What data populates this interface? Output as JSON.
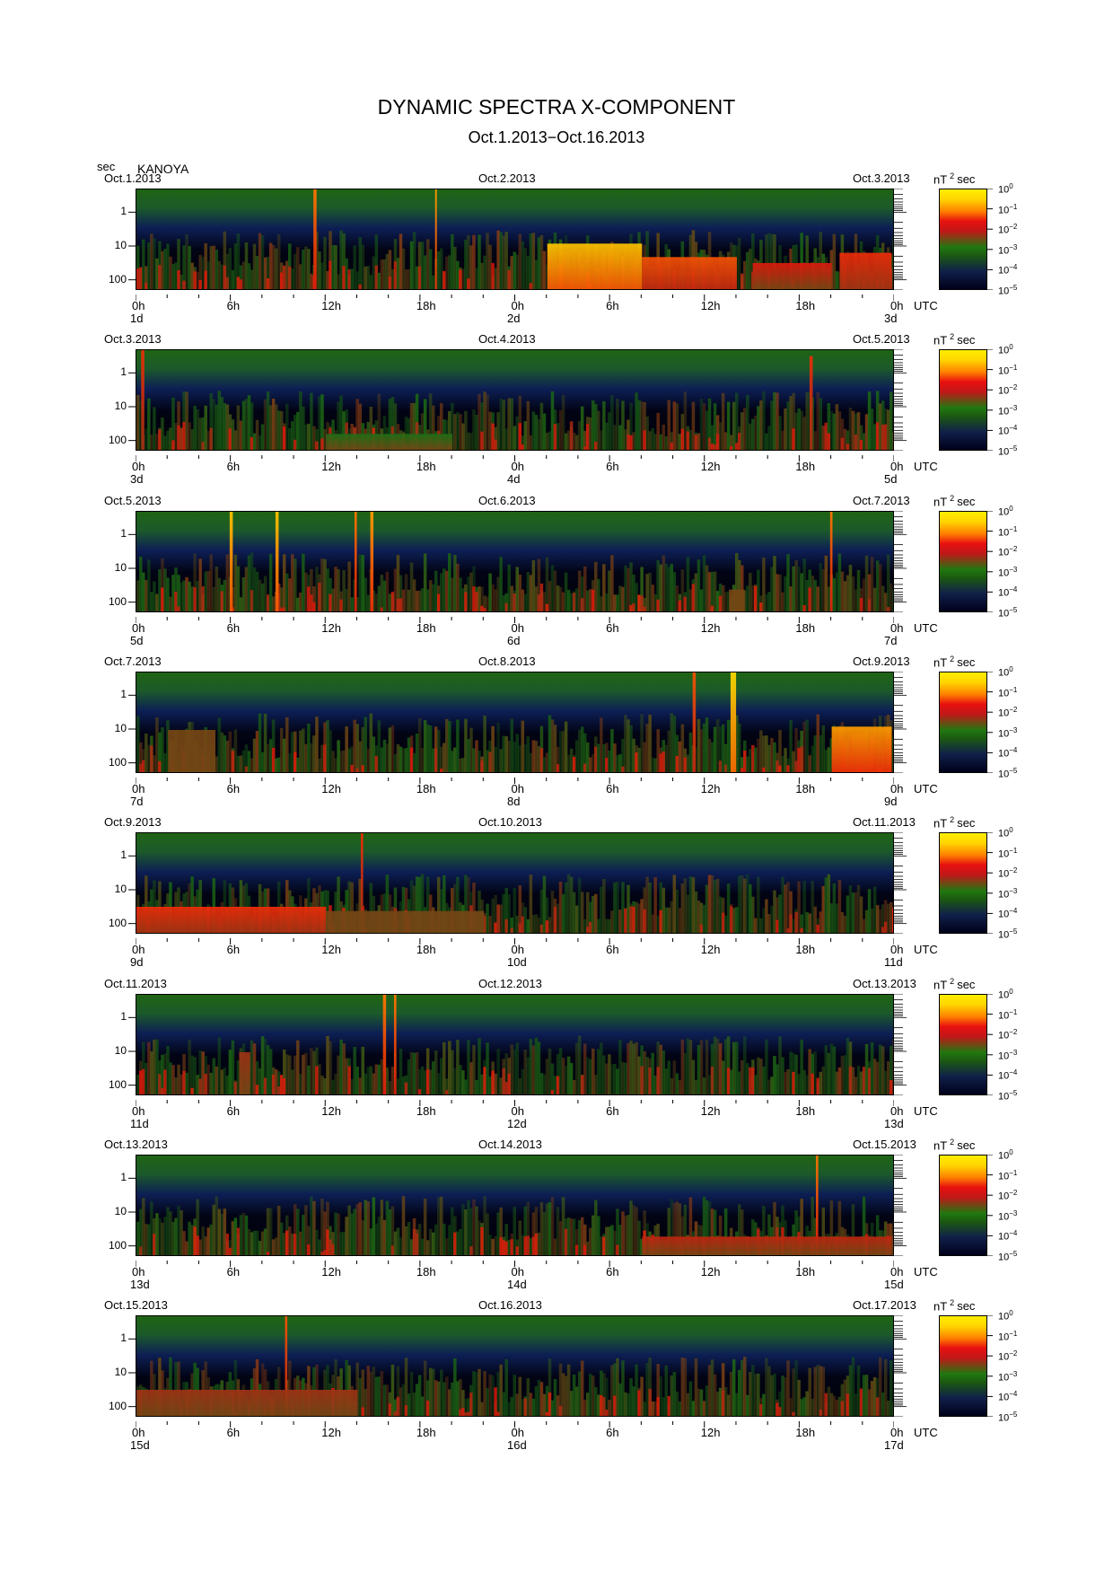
{
  "chart_data": {
    "type": "heatmap",
    "title": "DYNAMIC SPECTRA X-COMPONENT",
    "subtitle": "Oct.1.2013−Oct.16.2013",
    "station": "KANOYA",
    "y_unit": "sec",
    "y_scale": "log",
    "y_ticks": [
      "1",
      "10",
      "100"
    ],
    "y_range_sec": [
      0.2,
      200
    ],
    "x_ticks": [
      "0h",
      "6h",
      "12h",
      "18h",
      "0h",
      "6h",
      "12h",
      "18h",
      "0h"
    ],
    "x_unit": "UTC",
    "colorbar": {
      "unit_base": "nT",
      "unit_exp": "2",
      "unit_suffix": "sec",
      "scale": "log",
      "range": [
        1e-05,
        1
      ],
      "ticks": [
        {
          "base": "10",
          "exp": "0"
        },
        {
          "base": "10",
          "exp": "−1"
        },
        {
          "base": "10",
          "exp": "−2"
        },
        {
          "base": "10",
          "exp": "−3"
        },
        {
          "base": "10",
          "exp": "−4"
        },
        {
          "base": "10",
          "exp": "−5"
        }
      ]
    },
    "panels": [
      {
        "date_left": "Oct.1.2013",
        "date_mid": "Oct.2.2013",
        "date_right": "Oct.3.2013",
        "day_left": "1d",
        "day_mid": "2d",
        "day_right": "3d",
        "events": [
          {
            "start_h": 11.2,
            "end_h": 11.4,
            "level": 0.85,
            "min_period": 0.2
          },
          {
            "start_h": 18.9,
            "end_h": 19.0,
            "level": 0.9,
            "min_period": 0.2
          },
          {
            "start_h": 26.0,
            "end_h": 32.0,
            "level": 0.95,
            "min_period": 8
          },
          {
            "start_h": 32.0,
            "end_h": 38.0,
            "level": 0.8,
            "min_period": 20
          },
          {
            "start_h": 39.0,
            "end_h": 44.0,
            "level": 0.7,
            "min_period": 30
          },
          {
            "start_h": 44.5,
            "end_h": 47.8,
            "level": 0.75,
            "min_period": 15
          }
        ]
      },
      {
        "date_left": "Oct.3.2013",
        "date_mid": "Oct.4.2013",
        "date_right": "Oct.5.2013",
        "day_left": "3d",
        "day_mid": "4d",
        "day_right": "5d",
        "events": [
          {
            "start_h": 0.3,
            "end_h": 0.5,
            "level": 0.75,
            "min_period": 0.2
          },
          {
            "start_h": 42.6,
            "end_h": 42.8,
            "level": 0.75,
            "min_period": 0.3
          },
          {
            "start_h": 12.0,
            "end_h": 20.0,
            "level": 0.45,
            "min_period": 60
          }
        ]
      },
      {
        "date_left": "Oct.5.2013",
        "date_mid": "Oct.6.2013",
        "date_right": "Oct.7.2013",
        "day_left": "5d",
        "day_mid": "6d",
        "day_right": "7d",
        "events": [
          {
            "start_h": 5.9,
            "end_h": 6.1,
            "level": 0.95,
            "min_period": 0.2
          },
          {
            "start_h": 8.8,
            "end_h": 9.0,
            "level": 0.95,
            "min_period": 0.2
          },
          {
            "start_h": 13.8,
            "end_h": 13.95,
            "level": 0.85,
            "min_period": 0.2
          },
          {
            "start_h": 14.8,
            "end_h": 15.0,
            "level": 0.9,
            "min_period": 0.2
          },
          {
            "start_h": 43.9,
            "end_h": 44.05,
            "level": 0.85,
            "min_period": 0.2
          },
          {
            "start_h": 37.5,
            "end_h": 38.5,
            "level": 0.55,
            "min_period": 40
          }
        ]
      },
      {
        "date_left": "Oct.7.2013",
        "date_mid": "Oct.8.2013",
        "date_right": "Oct.9.2013",
        "day_left": "7d",
        "day_mid": "8d",
        "day_right": "9d",
        "events": [
          {
            "start_h": 35.2,
            "end_h": 35.4,
            "level": 0.8,
            "min_period": 0.2
          },
          {
            "start_h": 37.6,
            "end_h": 37.95,
            "level": 0.98,
            "min_period": 0.2
          },
          {
            "start_h": 44.0,
            "end_h": 47.8,
            "level": 0.9,
            "min_period": 8
          },
          {
            "start_h": 2.0,
            "end_h": 5.0,
            "level": 0.55,
            "min_period": 10
          }
        ]
      },
      {
        "date_left": "Oct.9.2013",
        "date_mid": "Oct.10.2013",
        "date_right": "Oct.11.2013",
        "day_left": "9d",
        "day_mid": "10d",
        "day_right": "11d",
        "events": [
          {
            "start_h": 14.2,
            "end_h": 14.35,
            "level": 0.75,
            "min_period": 0.2
          },
          {
            "start_h": 0.0,
            "end_h": 12.0,
            "level": 0.75,
            "min_period": 30
          },
          {
            "start_h": 12.0,
            "end_h": 22.0,
            "level": 0.55,
            "min_period": 40
          }
        ]
      },
      {
        "date_left": "Oct.11.2013",
        "date_mid": "Oct.12.2013",
        "date_right": "Oct.13.2013",
        "day_left": "11d",
        "day_mid": "12d",
        "day_right": "13d",
        "events": [
          {
            "start_h": 15.6,
            "end_h": 15.8,
            "level": 0.85,
            "min_period": 0.2
          },
          {
            "start_h": 16.3,
            "end_h": 16.45,
            "level": 0.85,
            "min_period": 0.2
          },
          {
            "start_h": 6.5,
            "end_h": 7.2,
            "level": 0.6,
            "min_period": 10
          }
        ]
      },
      {
        "date_left": "Oct.13.2013",
        "date_mid": "Oct.14.2013",
        "date_right": "Oct.15.2013",
        "day_left": "13d",
        "day_mid": "14d",
        "day_right": "15d",
        "events": [
          {
            "start_h": 43.0,
            "end_h": 43.15,
            "level": 0.85,
            "min_period": 0.2
          },
          {
            "start_h": 32.0,
            "end_h": 47.8,
            "level": 0.65,
            "min_period": 50
          }
        ]
      },
      {
        "date_left": "Oct.15.2013",
        "date_mid": "Oct.16.2013",
        "date_right": "Oct.17.2013",
        "day_left": "15d",
        "day_mid": "16d",
        "day_right": "17d",
        "events": [
          {
            "start_h": 9.4,
            "end_h": 9.55,
            "level": 0.8,
            "min_period": 0.2
          },
          {
            "start_h": 0.0,
            "end_h": 14.0,
            "level": 0.6,
            "min_period": 30
          }
        ]
      }
    ]
  }
}
